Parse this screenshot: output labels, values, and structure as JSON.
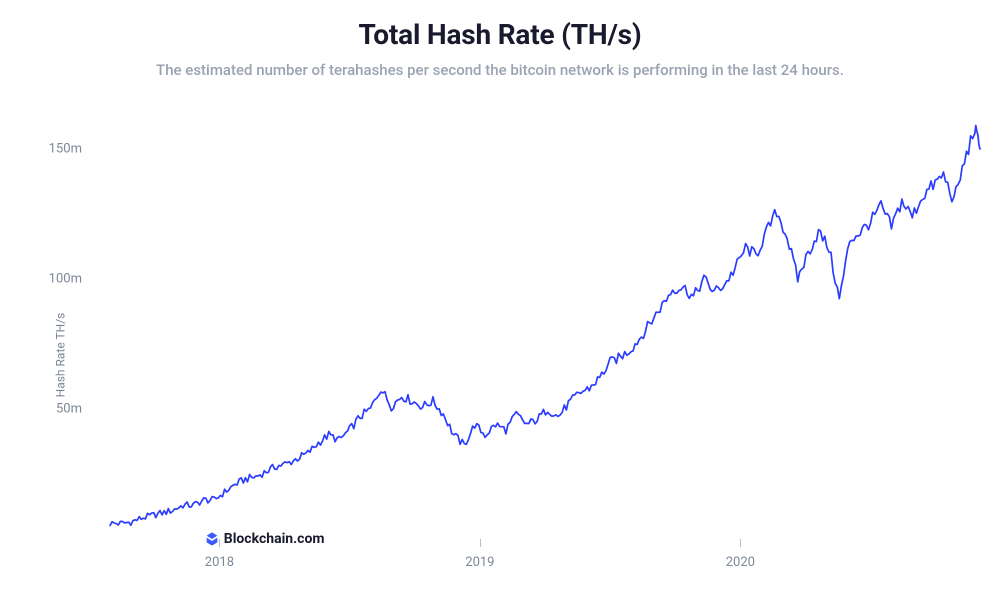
{
  "title": "Total Hash Rate (TH/s)",
  "subtitle": "The estimated number of terahashes per second the bitcoin network is performing in the last 24 hours.",
  "yaxis_label": "Hash Rate TH/s",
  "xaxis_title": "",
  "brand": "Blockchain.com",
  "title_fontsize": 28,
  "subtitle_fontsize": 15,
  "axis_label_fontsize": 13,
  "yaxis_title_fontsize": 12,
  "chart": {
    "type": "line",
    "line_color": "#2b3cff",
    "line_width": 1.7,
    "background_color": "#ffffff",
    "axis_tick_color": "#b5bdcb",
    "axis_label_color": "#7d8799",
    "x_range": [
      2017.58,
      2020.92
    ],
    "y_range": [
      0,
      165
    ],
    "y_ticks": [
      {
        "value": 50,
        "label": "50m"
      },
      {
        "value": 100,
        "label": "100m"
      },
      {
        "value": 150,
        "label": "150m"
      }
    ],
    "x_ticks": [
      {
        "value": 2018,
        "label": "2018"
      },
      {
        "value": 2019,
        "label": "2019"
      },
      {
        "value": 2020,
        "label": "2020"
      }
    ],
    "series": [
      {
        "x": 2017.58,
        "y": 6
      },
      {
        "x": 2017.62,
        "y": 6
      },
      {
        "x": 2017.66,
        "y": 6.5
      },
      {
        "x": 2017.7,
        "y": 8
      },
      {
        "x": 2017.74,
        "y": 9
      },
      {
        "x": 2017.78,
        "y": 10
      },
      {
        "x": 2017.82,
        "y": 11
      },
      {
        "x": 2017.86,
        "y": 13
      },
      {
        "x": 2017.9,
        "y": 13
      },
      {
        "x": 2017.94,
        "y": 15
      },
      {
        "x": 2017.98,
        "y": 15
      },
      {
        "x": 2018.02,
        "y": 18
      },
      {
        "x": 2018.06,
        "y": 21
      },
      {
        "x": 2018.1,
        "y": 23
      },
      {
        "x": 2018.14,
        "y": 24
      },
      {
        "x": 2018.18,
        "y": 26
      },
      {
        "x": 2018.22,
        "y": 28
      },
      {
        "x": 2018.26,
        "y": 29
      },
      {
        "x": 2018.3,
        "y": 31
      },
      {
        "x": 2018.34,
        "y": 33
      },
      {
        "x": 2018.38,
        "y": 37
      },
      {
        "x": 2018.42,
        "y": 40
      },
      {
        "x": 2018.46,
        "y": 38
      },
      {
        "x": 2018.5,
        "y": 42
      },
      {
        "x": 2018.54,
        "y": 47
      },
      {
        "x": 2018.58,
        "y": 50
      },
      {
        "x": 2018.62,
        "y": 58
      },
      {
        "x": 2018.66,
        "y": 51
      },
      {
        "x": 2018.7,
        "y": 55
      },
      {
        "x": 2018.74,
        "y": 53
      },
      {
        "x": 2018.78,
        "y": 51
      },
      {
        "x": 2018.82,
        "y": 53
      },
      {
        "x": 2018.86,
        "y": 48
      },
      {
        "x": 2018.9,
        "y": 40
      },
      {
        "x": 2018.94,
        "y": 36
      },
      {
        "x": 2018.98,
        "y": 44
      },
      {
        "x": 2019.02,
        "y": 40
      },
      {
        "x": 2019.06,
        "y": 44
      },
      {
        "x": 2019.1,
        "y": 42
      },
      {
        "x": 2019.14,
        "y": 48
      },
      {
        "x": 2019.18,
        "y": 44
      },
      {
        "x": 2019.22,
        "y": 46
      },
      {
        "x": 2019.26,
        "y": 50
      },
      {
        "x": 2019.3,
        "y": 47
      },
      {
        "x": 2019.34,
        "y": 52
      },
      {
        "x": 2019.38,
        "y": 56
      },
      {
        "x": 2019.42,
        "y": 58
      },
      {
        "x": 2019.46,
        "y": 62
      },
      {
        "x": 2019.5,
        "y": 68
      },
      {
        "x": 2019.54,
        "y": 70
      },
      {
        "x": 2019.58,
        "y": 73
      },
      {
        "x": 2019.62,
        "y": 78
      },
      {
        "x": 2019.66,
        "y": 84
      },
      {
        "x": 2019.7,
        "y": 90
      },
      {
        "x": 2019.74,
        "y": 96
      },
      {
        "x": 2019.78,
        "y": 97
      },
      {
        "x": 2019.82,
        "y": 93
      },
      {
        "x": 2019.86,
        "y": 100
      },
      {
        "x": 2019.9,
        "y": 95
      },
      {
        "x": 2019.94,
        "y": 98
      },
      {
        "x": 2019.98,
        "y": 104
      },
      {
        "x": 2020.02,
        "y": 112
      },
      {
        "x": 2020.06,
        "y": 109
      },
      {
        "x": 2020.1,
        "y": 118
      },
      {
        "x": 2020.14,
        "y": 126
      },
      {
        "x": 2020.18,
        "y": 116
      },
      {
        "x": 2020.22,
        "y": 100
      },
      {
        "x": 2020.26,
        "y": 110
      },
      {
        "x": 2020.3,
        "y": 118
      },
      {
        "x": 2020.34,
        "y": 112
      },
      {
        "x": 2020.38,
        "y": 92
      },
      {
        "x": 2020.42,
        "y": 115
      },
      {
        "x": 2020.46,
        "y": 118
      },
      {
        "x": 2020.5,
        "y": 122
      },
      {
        "x": 2020.54,
        "y": 128
      },
      {
        "x": 2020.58,
        "y": 120
      },
      {
        "x": 2020.62,
        "y": 130
      },
      {
        "x": 2020.66,
        "y": 124
      },
      {
        "x": 2020.7,
        "y": 132
      },
      {
        "x": 2020.74,
        "y": 136
      },
      {
        "x": 2020.78,
        "y": 140
      },
      {
        "x": 2020.82,
        "y": 130
      },
      {
        "x": 2020.86,
        "y": 145
      },
      {
        "x": 2020.9,
        "y": 158
      },
      {
        "x": 2020.92,
        "y": 150
      }
    ],
    "noise_amplitude": 6,
    "brand_icon_fill": "#3b5bff",
    "brand_position_x": 2017.94,
    "brand_position_y": 3
  }
}
